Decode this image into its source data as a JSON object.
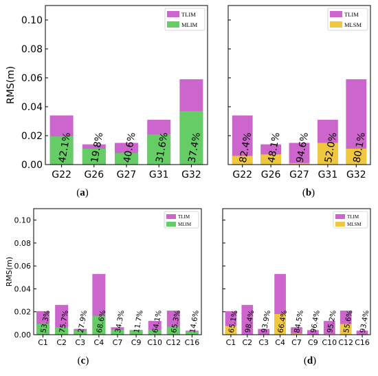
{
  "colors": {
    "tlim": "#cc66cc",
    "mlim": "#66cc66",
    "mlsm": "#f0c840",
    "axis": "#000000"
  },
  "chart_data": [
    {
      "type": "bar",
      "panel_label": "(a)",
      "ylabel": "RMS(m)",
      "ylim": [
        0,
        0.11
      ],
      "yticks": [
        "0.00",
        "0.02",
        "0.04",
        "0.06",
        "0.08",
        "0.10"
      ],
      "categories": [
        "G22",
        "G26",
        "G27",
        "G31",
        "G32"
      ],
      "series": [
        {
          "name": "TLIM",
          "color_key": "tlim",
          "values": [
            0.034,
            0.014,
            0.015,
            0.031,
            0.059
          ]
        },
        {
          "name": "MLIM",
          "color_key": "mlim",
          "values": [
            0.0195,
            0.011,
            0.008,
            0.021,
            0.037
          ]
        }
      ],
      "percent_labels": [
        "42.1%",
        "19.8%",
        "40.6%",
        "31.6%",
        "37.4%"
      ],
      "legend_position": "top-right"
    },
    {
      "type": "bar",
      "panel_label": "(b)",
      "ylabel": "",
      "ylim": [
        0,
        0.11
      ],
      "yticks": [],
      "categories": [
        "G22",
        "G26",
        "G27",
        "G31",
        "G32"
      ],
      "series": [
        {
          "name": "TLIM",
          "color_key": "tlim",
          "values": [
            0.034,
            0.014,
            0.015,
            0.031,
            0.059
          ]
        },
        {
          "name": "MLSM",
          "color_key": "mlsm",
          "values": [
            0.006,
            0.007,
            0.001,
            0.015,
            0.011
          ]
        }
      ],
      "percent_labels": [
        "82.4%",
        "48.1%",
        "94.6%",
        "52.0%",
        "80.1%"
      ],
      "legend_position": "top-right"
    },
    {
      "type": "bar",
      "panel_label": "(c)",
      "ylabel": "RMS(m)",
      "ylim": [
        0,
        0.11
      ],
      "yticks": [
        "0.00",
        "0.02",
        "0.04",
        "0.06",
        "0.08",
        "0.10"
      ],
      "categories": [
        "C1",
        "C2",
        "C3",
        "C4",
        "C7",
        "C9",
        "C10",
        "C12",
        "C16"
      ],
      "series": [
        {
          "name": "TLIM",
          "color_key": "tlim",
          "values": [
            0.0205,
            0.026,
            0.005,
            0.053,
            0.0065,
            0.004,
            0.012,
            0.021,
            0.0035
          ]
        },
        {
          "name": "MLIM",
          "color_key": "mlim",
          "values": [
            0.0095,
            0.0065,
            0.0035,
            0.0165,
            0.0043,
            0.0035,
            0.004,
            0.007,
            0.003
          ]
        }
      ],
      "percent_labels": [
        "53.3%",
        "75.7%",
        "27.9%",
        "68.6%",
        "34.3%",
        "11.7%",
        "64.1%",
        "65.3%",
        "14.6%"
      ],
      "legend_position": "top-right"
    },
    {
      "type": "bar",
      "panel_label": "(d)",
      "ylabel": "",
      "ylim": [
        0,
        0.11
      ],
      "yticks": [],
      "categories": [
        "C1",
        "C2",
        "C3",
        "C4",
        "C7",
        "C9",
        "C10",
        "C12",
        "C16"
      ],
      "series": [
        {
          "name": "TLIM",
          "color_key": "tlim",
          "values": [
            0.0205,
            0.026,
            0.005,
            0.053,
            0.0065,
            0.004,
            0.012,
            0.021,
            0.0035
          ]
        },
        {
          "name": "MLSM",
          "color_key": "mlsm",
          "values": [
            0.0075,
            0.0005,
            0.0003,
            0.018,
            0.001,
            0.0002,
            0.0006,
            0.0093,
            0.0002
          ]
        }
      ],
      "percent_labels": [
        "65.1%",
        "98.4%",
        "93.9%",
        "66.4%",
        "84.5%",
        "96.4%",
        "95.2%",
        "55.6%",
        "93.4%"
      ],
      "legend_position": "top-right"
    }
  ]
}
